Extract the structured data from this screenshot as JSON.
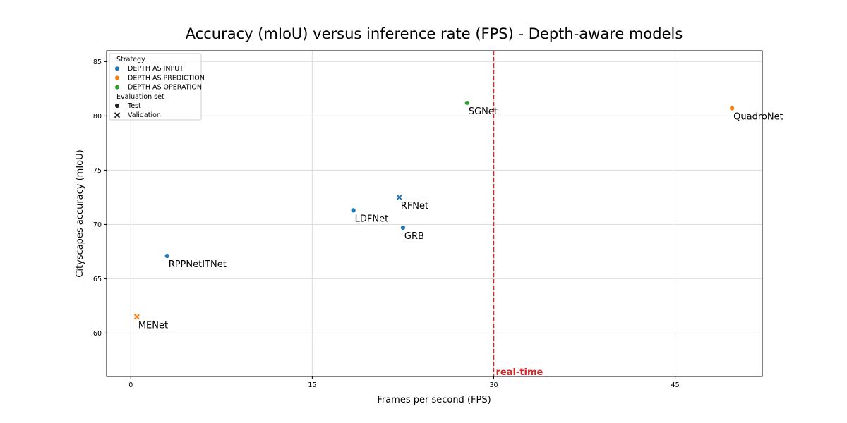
{
  "chart_data": {
    "type": "scatter",
    "title": "Accuracy (mIoU) versus inference rate (FPS) - Depth-aware models",
    "xlabel": "Frames per second (FPS)",
    "ylabel": "Cityscapes accuracy (mIoU)",
    "xlim": [
      -2,
      52.2
    ],
    "ylim": [
      56,
      86
    ],
    "xticks": [
      0,
      15,
      30,
      45
    ],
    "yticks": [
      60,
      65,
      70,
      75,
      80,
      85
    ],
    "grid": true,
    "strategies": [
      {
        "name": "DEPTH AS INPUT",
        "color": "#1f77b4"
      },
      {
        "name": "DEPTH AS PREDICTION",
        "color": "#ff7f0e"
      },
      {
        "name": "DEPTH AS OPERATION",
        "color": "#2ca02c"
      }
    ],
    "evaluation_sets": [
      {
        "name": "Test",
        "marker": "circle"
      },
      {
        "name": "Validation",
        "marker": "x"
      }
    ],
    "points": [
      {
        "label": "SGNet",
        "fps": 27.8,
        "miou": 81.2,
        "strategy": "DEPTH AS OPERATION",
        "eval": "Test"
      },
      {
        "label": "QuadroNet",
        "fps": 49.7,
        "miou": 80.7,
        "strategy": "DEPTH AS PREDICTION",
        "eval": "Test"
      },
      {
        "label": "RFNet",
        "fps": 22.2,
        "miou": 72.5,
        "strategy": "DEPTH AS INPUT",
        "eval": "Validation"
      },
      {
        "label": "LDFNet",
        "fps": 18.4,
        "miou": 71.3,
        "strategy": "DEPTH AS INPUT",
        "eval": "Test"
      },
      {
        "label": "GRB",
        "fps": 22.5,
        "miou": 69.7,
        "strategy": "DEPTH AS INPUT",
        "eval": "Test"
      },
      {
        "label": "RPPNetITNet",
        "fps": 3.0,
        "miou": 67.1,
        "strategy": "DEPTH AS INPUT",
        "eval": "Test"
      },
      {
        "label": "MENet",
        "fps": 0.5,
        "miou": 61.5,
        "strategy": "DEPTH AS PREDICTION",
        "eval": "Validation"
      }
    ],
    "reference_line": {
      "x": 30,
      "label": "real-time",
      "color": "#d62728"
    },
    "legend": {
      "placement": "top-left",
      "strategy_title": "Strategy",
      "eval_title": "Evaluation set"
    }
  }
}
